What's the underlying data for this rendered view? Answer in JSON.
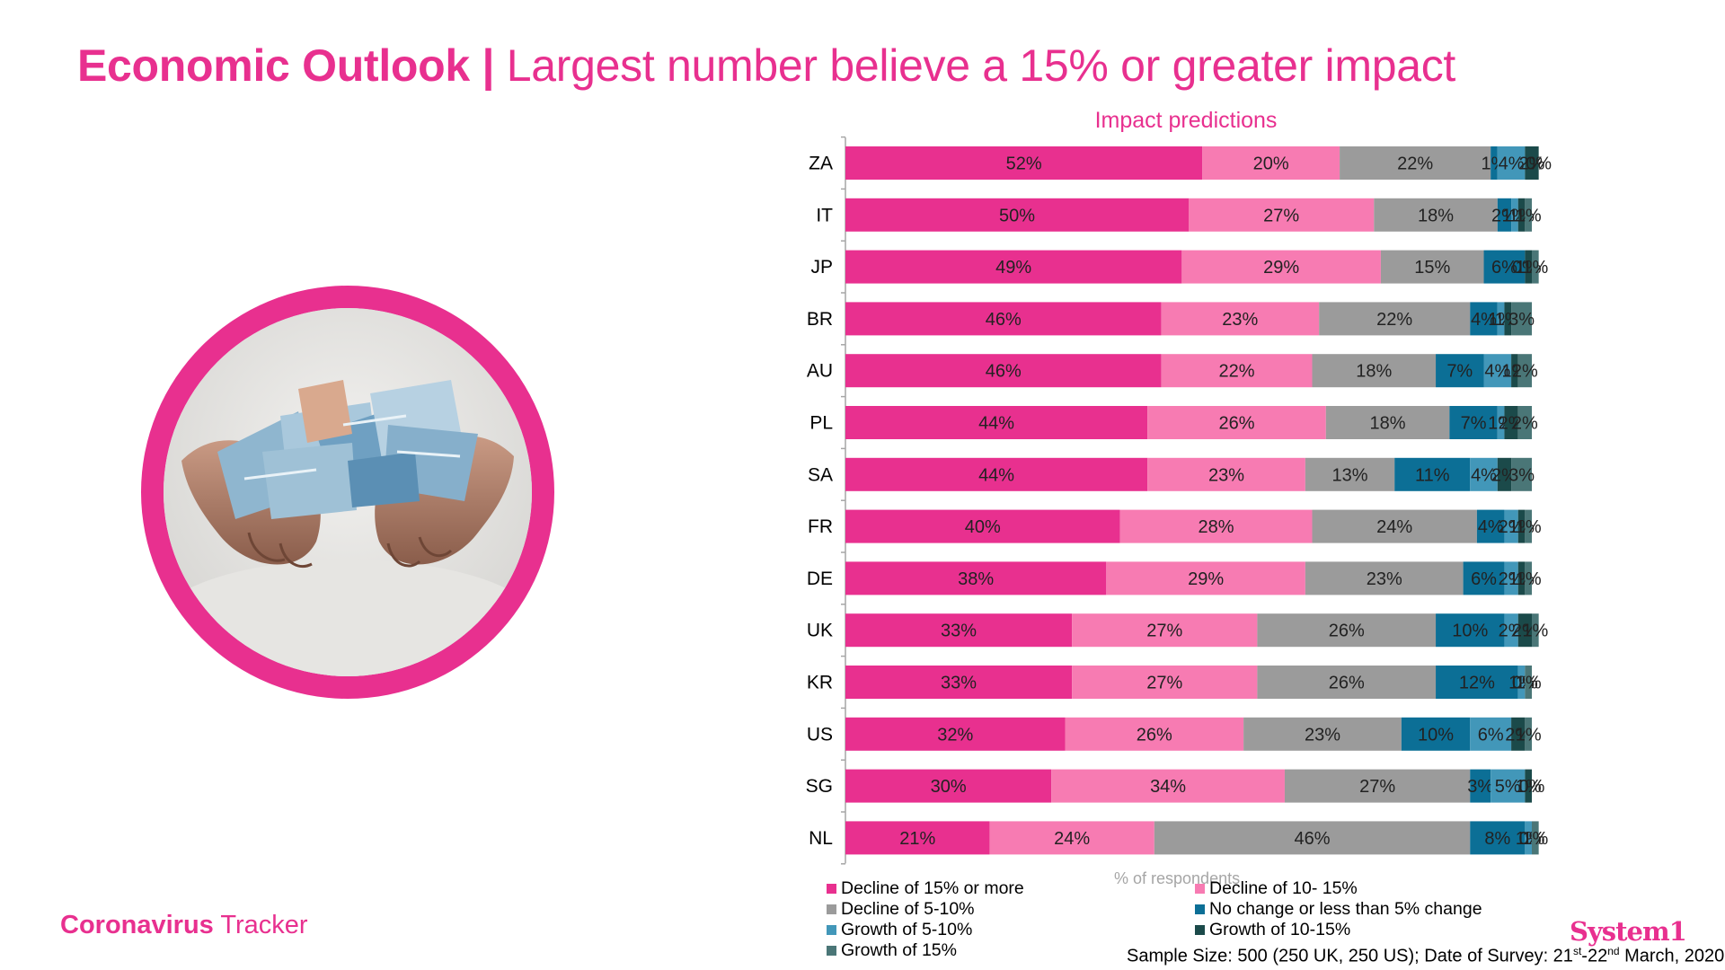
{
  "title": {
    "bold": "Economic Outlook |",
    "rest": " Largest number believe a 15% or greater impact"
  },
  "footer": {
    "tracker_bold": "Coronavirus",
    "tracker_rest": " Tracker",
    "logo": "System1",
    "sample_prefix": "Sample Size: 500 (250 UK, 250 US); Date of Survey: 21",
    "sample_sup1": "st",
    "sample_mid": "-22",
    "sample_sup2": "nd",
    "sample_suffix": " March, 2020"
  },
  "colors": {
    "accent": "#e8308f",
    "decline15": "#e8308f",
    "decline10": "#f77bb2",
    "decline5": "#9b9b9b",
    "nochange": "#0c6f96",
    "growth5": "#4297b9",
    "growth10": "#1b4a4a",
    "growth15": "#4a7677"
  },
  "chart_data": {
    "type": "bar",
    "orientation": "horizontal",
    "stacked": true,
    "title": "Impact predictions",
    "xlabel": "% of respondents",
    "ylabel": "",
    "xlim": [
      0,
      100
    ],
    "categories": [
      "ZA",
      "IT",
      "JP",
      "BR",
      "AU",
      "PL",
      "SA",
      "FR",
      "DE",
      "UK",
      "KR",
      "US",
      "SG",
      "NL"
    ],
    "series": [
      {
        "name": "Decline of 15% or more",
        "color_key": "decline15",
        "values": [
          52,
          50,
          49,
          46,
          46,
          44,
          44,
          40,
          38,
          33,
          33,
          32,
          30,
          21
        ]
      },
      {
        "name": "Decline of 10- 15%",
        "color_key": "decline10",
        "values": [
          20,
          27,
          29,
          23,
          22,
          26,
          23,
          28,
          29,
          27,
          27,
          26,
          34,
          24
        ]
      },
      {
        "name": "Decline of 5-10%",
        "color_key": "decline5",
        "values": [
          22,
          18,
          15,
          22,
          18,
          18,
          13,
          24,
          23,
          26,
          26,
          23,
          27,
          46
        ]
      },
      {
        "name": "No change or less than 5% change",
        "color_key": "nochange",
        "values": [
          1,
          2,
          6,
          4,
          7,
          7,
          11,
          4,
          6,
          10,
          12,
          10,
          3,
          8
        ]
      },
      {
        "name": "Growth of 5-10%",
        "color_key": "growth5",
        "values": [
          4,
          1,
          0,
          1,
          4,
          1,
          4,
          2,
          2,
          2,
          1,
          6,
          5,
          1
        ]
      },
      {
        "name": "Growth of 10-15%",
        "color_key": "growth10",
        "values": [
          2,
          1,
          1,
          1,
          1,
          2,
          2,
          1,
          1,
          2,
          0,
          2,
          1,
          0
        ]
      },
      {
        "name": "Growth of 15%",
        "color_key": "growth15",
        "values": [
          0,
          1,
          1,
          3,
          2,
          2,
          3,
          1,
          1,
          1,
          1,
          1,
          0,
          1
        ]
      }
    ],
    "legend": {
      "position": "bottom",
      "order": [
        "Decline of 15% or more",
        "Decline of 10- 15%",
        "Decline of 5-10%",
        "No change or less than 5% change",
        "Growth of 5-10%",
        "Growth of 10-15%",
        "Growth of 15%"
      ]
    }
  }
}
